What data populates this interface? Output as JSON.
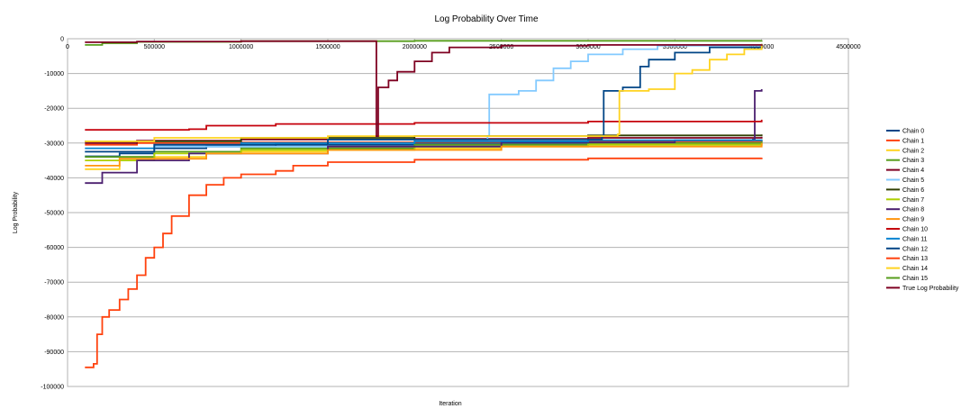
{
  "chart_data": {
    "type": "line",
    "title": "Log Probability Over Time",
    "xlabel": "Iteration",
    "ylabel": "Log Probability",
    "xlim": [
      0,
      4500000
    ],
    "ylim": [
      -100000,
      0
    ],
    "x_ticks": [
      0,
      500000,
      1000000,
      1500000,
      2000000,
      2500000,
      3000000,
      3500000,
      4000000,
      4500000
    ],
    "y_ticks": [
      0,
      -10000,
      -20000,
      -30000,
      -40000,
      -50000,
      -60000,
      -70000,
      -80000,
      -90000,
      -100000
    ],
    "grid": true,
    "legend_position": "right",
    "series": [
      {
        "name": "Chain 0",
        "color": "#004586",
        "points": [
          [
            100000,
            -33800
          ],
          [
            300000,
            -33000
          ],
          [
            500000,
            -31500
          ],
          [
            800000,
            -31000
          ],
          [
            1200000,
            -30500
          ],
          [
            2000000,
            -30000
          ],
          [
            3000000,
            -29500
          ],
          [
            4000000,
            -29000
          ]
        ]
      },
      {
        "name": "Chain 1",
        "color": "#ff420e",
        "points": [
          [
            100000,
            -30500
          ],
          [
            400000,
            -30000
          ],
          [
            1000000,
            -29800
          ],
          [
            2000000,
            -29700
          ],
          [
            3000000,
            -29500
          ],
          [
            4000000,
            -29300
          ]
        ]
      },
      {
        "name": "Chain 2",
        "color": "#ffd320",
        "points": [
          [
            100000,
            -37500
          ],
          [
            300000,
            -34000
          ],
          [
            800000,
            -32500
          ],
          [
            1500000,
            -31500
          ],
          [
            2500000,
            -30500
          ],
          [
            4000000,
            -30000
          ]
        ]
      },
      {
        "name": "Chain 3",
        "color": "#579d1c",
        "points": [
          [
            100000,
            -34000
          ],
          [
            500000,
            -32500
          ],
          [
            1000000,
            -31500
          ],
          [
            2000000,
            -30500
          ],
          [
            3000000,
            -30000
          ],
          [
            4000000,
            -29500
          ]
        ]
      },
      {
        "name": "Chain 4",
        "color": "#7e0021",
        "points": [
          [
            100000,
            -30000
          ],
          [
            400000,
            -29300
          ],
          [
            1000000,
            -29000
          ],
          [
            2000000,
            -28800
          ],
          [
            3000000,
            -28500
          ],
          [
            4000000,
            -28200
          ]
        ]
      },
      {
        "name": "Chain 5",
        "color": "#83caff",
        "points": [
          [
            100000,
            -32500
          ],
          [
            500000,
            -31000
          ],
          [
            1500000,
            -29000
          ],
          [
            2420000,
            -28000
          ],
          [
            2430000,
            -16000
          ],
          [
            2600000,
            -15000
          ],
          [
            2700000,
            -12000
          ],
          [
            2800000,
            -8500
          ],
          [
            2900000,
            -6500
          ],
          [
            3000000,
            -4500
          ],
          [
            3200000,
            -3000
          ],
          [
            3400000,
            -2000
          ],
          [
            4000000,
            -1500
          ]
        ]
      },
      {
        "name": "Chain 6",
        "color": "#314004",
        "points": [
          [
            100000,
            -29500
          ],
          [
            1000000,
            -28500
          ],
          [
            2000000,
            -28000
          ],
          [
            3000000,
            -27800
          ],
          [
            4000000,
            -27500
          ]
        ]
      },
      {
        "name": "Chain 7",
        "color": "#aecf00",
        "points": [
          [
            100000,
            -35000
          ],
          [
            500000,
            -33000
          ],
          [
            1000000,
            -32000
          ],
          [
            2000000,
            -31000
          ],
          [
            3000000,
            -30500
          ],
          [
            4000000,
            -30000
          ]
        ]
      },
      {
        "name": "Chain 8",
        "color": "#4b1f6f",
        "points": [
          [
            100000,
            -41500
          ],
          [
            200000,
            -38500
          ],
          [
            400000,
            -35000
          ],
          [
            700000,
            -33000
          ],
          [
            1500000,
            -31000
          ],
          [
            2500000,
            -29800
          ],
          [
            3500000,
            -29200
          ],
          [
            3950000,
            -29000
          ],
          [
            3960000,
            -15000
          ],
          [
            4000000,
            -14500
          ]
        ]
      },
      {
        "name": "Chain 9",
        "color": "#ff950e",
        "points": [
          [
            100000,
            -36500
          ],
          [
            300000,
            -34500
          ],
          [
            800000,
            -33000
          ],
          [
            1500000,
            -32000
          ],
          [
            2500000,
            -31000
          ],
          [
            4000000,
            -30000
          ]
        ]
      },
      {
        "name": "Chain 10",
        "color": "#c5000b",
        "points": [
          [
            100000,
            -26200
          ],
          [
            700000,
            -26000
          ],
          [
            800000,
            -25000
          ],
          [
            1200000,
            -24500
          ],
          [
            2000000,
            -24200
          ],
          [
            3000000,
            -23800
          ],
          [
            4000000,
            -23300
          ]
        ]
      },
      {
        "name": "Chain 11",
        "color": "#0084d1",
        "points": [
          [
            100000,
            -31500
          ],
          [
            500000,
            -30500
          ],
          [
            1000000,
            -30000
          ],
          [
            2000000,
            -29500
          ],
          [
            3000000,
            -29200
          ],
          [
            4000000,
            -29000
          ]
        ]
      },
      {
        "name": "Chain 12",
        "color": "#004586",
        "points": [
          [
            100000,
            -32500
          ],
          [
            500000,
            -30500
          ],
          [
            1500000,
            -29000
          ],
          [
            3080000,
            -28000
          ],
          [
            3090000,
            -15000
          ],
          [
            3200000,
            -14000
          ],
          [
            3300000,
            -8000
          ],
          [
            3350000,
            -6000
          ],
          [
            3500000,
            -4000
          ],
          [
            3700000,
            -2500
          ],
          [
            4000000,
            -1500
          ]
        ]
      },
      {
        "name": "Chain 13",
        "color": "#ff420e",
        "points": [
          [
            100000,
            -94500
          ],
          [
            150000,
            -93500
          ],
          [
            170000,
            -85000
          ],
          [
            200000,
            -80000
          ],
          [
            240000,
            -78000
          ],
          [
            300000,
            -75000
          ],
          [
            350000,
            -72000
          ],
          [
            400000,
            -68000
          ],
          [
            450000,
            -63000
          ],
          [
            500000,
            -60000
          ],
          [
            550000,
            -56000
          ],
          [
            600000,
            -51000
          ],
          [
            700000,
            -45000
          ],
          [
            800000,
            -42000
          ],
          [
            900000,
            -40000
          ],
          [
            1000000,
            -39000
          ],
          [
            1200000,
            -38000
          ],
          [
            1300000,
            -36500
          ],
          [
            1500000,
            -35500
          ],
          [
            2000000,
            -34800
          ],
          [
            3000000,
            -34400
          ],
          [
            4000000,
            -34200
          ]
        ]
      },
      {
        "name": "Chain 14",
        "color": "#ffd320",
        "points": [
          [
            100000,
            -29500
          ],
          [
            500000,
            -28500
          ],
          [
            1500000,
            -28000
          ],
          [
            3170000,
            -27500
          ],
          [
            3180000,
            -15000
          ],
          [
            3350000,
            -14500
          ],
          [
            3500000,
            -10000
          ],
          [
            3600000,
            -9000
          ],
          [
            3700000,
            -6000
          ],
          [
            3800000,
            -4500
          ],
          [
            3900000,
            -3000
          ],
          [
            4000000,
            -1500
          ]
        ]
      },
      {
        "name": "Chain 15",
        "color": "#579d1c",
        "points": [
          [
            100000,
            -1800
          ],
          [
            200000,
            -1300
          ],
          [
            400000,
            -900
          ],
          [
            1000000,
            -700
          ],
          [
            2000000,
            -600
          ],
          [
            4000000,
            -500
          ]
        ]
      },
      {
        "name": "True Log Probability",
        "color": "#7e0021",
        "points": [
          [
            100000,
            -1000
          ],
          [
            400000,
            -800
          ],
          [
            1000000,
            -700
          ],
          [
            1780000,
            -28000
          ],
          [
            1790000,
            -14000
          ],
          [
            1850000,
            -12000
          ],
          [
            1900000,
            -9500
          ],
          [
            2000000,
            -6500
          ],
          [
            2100000,
            -4000
          ],
          [
            2200000,
            -2500
          ],
          [
            2500000,
            -2000
          ],
          [
            3000000,
            -1800
          ],
          [
            4000000,
            -1600
          ]
        ]
      }
    ]
  }
}
